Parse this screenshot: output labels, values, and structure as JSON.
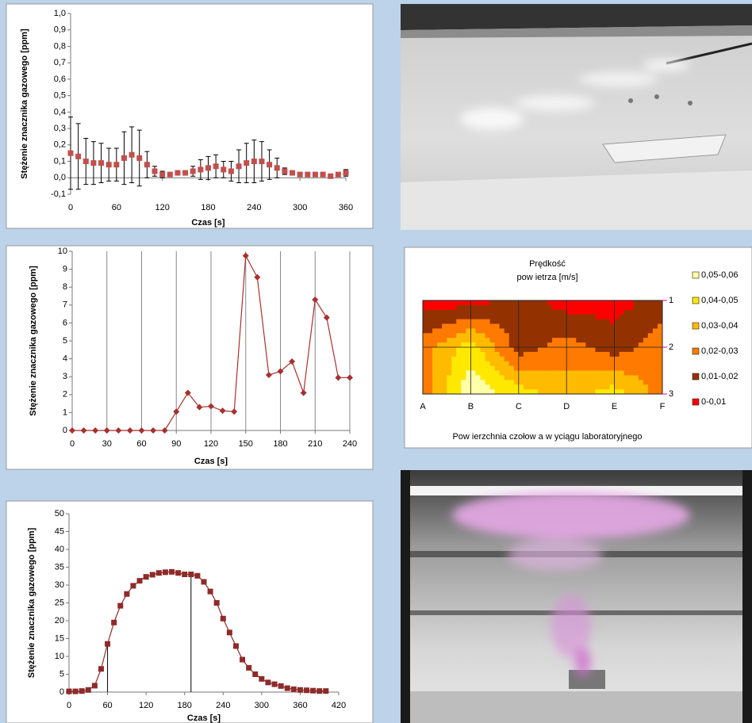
{
  "chart_data": [
    {
      "type": "scatter",
      "ylabel": "Stężenie znacznika gazowego [ppm]",
      "xlabel": "Czas [s]",
      "marker": "square",
      "color": "#c0504d",
      "error_color": "#000000",
      "x": [
        0,
        10,
        20,
        30,
        40,
        50,
        60,
        70,
        80,
        90,
        100,
        110,
        120,
        130,
        140,
        150,
        160,
        170,
        180,
        190,
        200,
        210,
        220,
        230,
        240,
        250,
        260,
        270,
        280,
        290,
        300,
        310,
        320,
        330,
        340,
        350,
        360
      ],
      "values": [
        0.15,
        0.13,
        0.1,
        0.09,
        0.09,
        0.08,
        0.08,
        0.12,
        0.14,
        0.12,
        0.08,
        0.04,
        0.02,
        0.02,
        0.03,
        0.03,
        0.04,
        0.05,
        0.06,
        0.07,
        0.05,
        0.04,
        0.07,
        0.09,
        0.1,
        0.1,
        0.08,
        0.06,
        0.04,
        0.03,
        0.02,
        0.02,
        0.02,
        0.02,
        0.01,
        0.02,
        0.03
      ],
      "errors": [
        0.22,
        0.2,
        0.14,
        0.13,
        0.12,
        0.1,
        0.1,
        0.16,
        0.17,
        0.17,
        0.08,
        0.03,
        0.02,
        0.01,
        0.01,
        0.01,
        0.03,
        0.06,
        0.07,
        0.07,
        0.05,
        0.06,
        0.1,
        0.12,
        0.13,
        0.12,
        0.09,
        0.06,
        0.02,
        0.01,
        0.01,
        0.01,
        0.01,
        0.01,
        0.01,
        0.01,
        0.02
      ],
      "xlim": [
        0,
        360
      ],
      "xticks": [
        0,
        60,
        120,
        180,
        240,
        300,
        360
      ],
      "ylim": [
        -0.1,
        1.0
      ],
      "yticks": [
        {
          "value": -0.1,
          "label": "-0,1"
        },
        {
          "value": 0,
          "label": "0,0"
        },
        {
          "value": 0.1,
          "label": "0,1"
        },
        {
          "value": 0.2,
          "label": "0,2"
        },
        {
          "value": 0.3,
          "label": "0,3"
        },
        {
          "value": 0.4,
          "label": "0,4"
        },
        {
          "value": 0.5,
          "label": "0,5"
        },
        {
          "value": 0.6,
          "label": "0,6"
        },
        {
          "value": 0.7,
          "label": "0,7"
        },
        {
          "value": 0.8,
          "label": "0,8"
        },
        {
          "value": 0.9,
          "label": "0,9"
        },
        {
          "value": 1.0,
          "label": "1,0"
        }
      ],
      "xgrid": false
    },
    {
      "type": "line",
      "ylabel": "Stężenie znacznika gazowego [ppm]",
      "xlabel": "Czas [s]",
      "marker": "diamond",
      "color": "#a5322f",
      "x": [
        0,
        10,
        20,
        30,
        40,
        50,
        60,
        70,
        80,
        90,
        100,
        110,
        120,
        130,
        140,
        150,
        160,
        170,
        180,
        190,
        200,
        210,
        220,
        230,
        240
      ],
      "values": [
        0,
        0,
        0,
        0,
        0,
        0,
        0,
        0,
        0,
        1.05,
        2.1,
        1.3,
        1.35,
        1.1,
        1.05,
        9.75,
        8.55,
        3.1,
        3.3,
        3.85,
        2.1,
        7.3,
        6.3,
        2.95,
        2.95
      ],
      "xlim": [
        0,
        240
      ],
      "xticks": [
        0,
        30,
        60,
        90,
        120,
        150,
        180,
        210,
        240
      ],
      "ylim": [
        0,
        10
      ],
      "yticks": [
        0,
        1,
        2,
        3,
        4,
        5,
        6,
        7,
        8,
        9,
        10
      ],
      "xgrid": true
    },
    {
      "type": "line",
      "ylabel": "Stężenie znacznika gazowego [ppm]",
      "xlabel": "Czas [s]",
      "marker": "square",
      "color": "#8e2b29",
      "x": [
        0,
        10,
        20,
        30,
        40,
        50,
        60,
        70,
        80,
        90,
        100,
        110,
        120,
        130,
        140,
        150,
        160,
        170,
        180,
        190,
        200,
        210,
        220,
        230,
        240,
        250,
        260,
        270,
        280,
        290,
        300,
        310,
        320,
        330,
        340,
        350,
        360,
        370,
        380,
        390,
        400
      ],
      "values": [
        0.2,
        0.2,
        0.3,
        0.6,
        1.8,
        6.5,
        13.5,
        19.5,
        24.2,
        27.5,
        29.8,
        31.2,
        32.3,
        32.9,
        33.4,
        33.6,
        33.7,
        33.4,
        33.0,
        33.0,
        32.6,
        30.9,
        28.2,
        25.0,
        20.6,
        16.7,
        12.9,
        9.1,
        6.8,
        5.0,
        3.7,
        2.7,
        2.2,
        1.7,
        1.1,
        0.8,
        0.6,
        0.5,
        0.4,
        0.3,
        0.3
      ],
      "droplines": [
        60,
        190
      ],
      "xlim": [
        0,
        420
      ],
      "xticks": [
        0,
        60,
        120,
        180,
        240,
        300,
        360,
        420
      ],
      "ylim": [
        0,
        50
      ],
      "yticks": [
        0,
        5,
        10,
        15,
        20,
        25,
        30,
        35,
        40,
        45,
        50
      ],
      "xgrid": false
    },
    {
      "type": "contour",
      "title_lines": [
        "Prędkość",
        "pow ietrza [m/s]"
      ],
      "xlabel": "Pow ierzchnia czołow a w yciągu laboratoryjnego",
      "columns": [
        "A",
        "B",
        "C",
        "D",
        "E",
        "F"
      ],
      "rows": [
        "1",
        "2",
        "3"
      ],
      "values": [
        [
          0.005,
          0.005,
          0.015,
          0.005,
          0.005,
          0.015
        ],
        [
          0.025,
          0.045,
          0.015,
          0.025,
          0.015,
          0.025
        ],
        [
          0.025,
          0.058,
          0.045,
          0.035,
          0.045,
          0.025
        ]
      ],
      "levels": [
        {
          "label": "0,05-0,06",
          "min": 0.05,
          "max": 0.06,
          "color": "#ffffa8"
        },
        {
          "label": "0,04-0,05",
          "min": 0.04,
          "max": 0.05,
          "color": "#ffe800"
        },
        {
          "label": "0,03-0,04",
          "min": 0.03,
          "max": 0.04,
          "color": "#ffbb00"
        },
        {
          "label": "0,02-0,03",
          "min": 0.02,
          "max": 0.03,
          "color": "#ff7a00"
        },
        {
          "label": "0,01-0,02",
          "min": 0.01,
          "max": 0.02,
          "color": "#933200"
        },
        {
          "label": "0-0,01",
          "min": 0,
          "max": 0.01,
          "color": "#ff0000"
        }
      ]
    }
  ]
}
